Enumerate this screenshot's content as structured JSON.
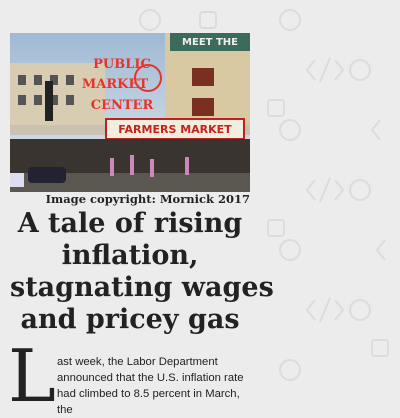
{
  "image": {
    "signs": [
      "MEET THE",
      "PUBLIC",
      "MARKET",
      "CENTER",
      "FARMERS MARKET"
    ],
    "caption": "Image copyright: Mornick 2017"
  },
  "article": {
    "title_lines": [
      "A tale of rising",
      "inflation,",
      "stagnating wages",
      "and pricey gas"
    ],
    "drop_cap": "L",
    "body": "ast week, the Labor Department announced that the U.S. inflation rate had climbed to 8.5 percent in March, the"
  }
}
